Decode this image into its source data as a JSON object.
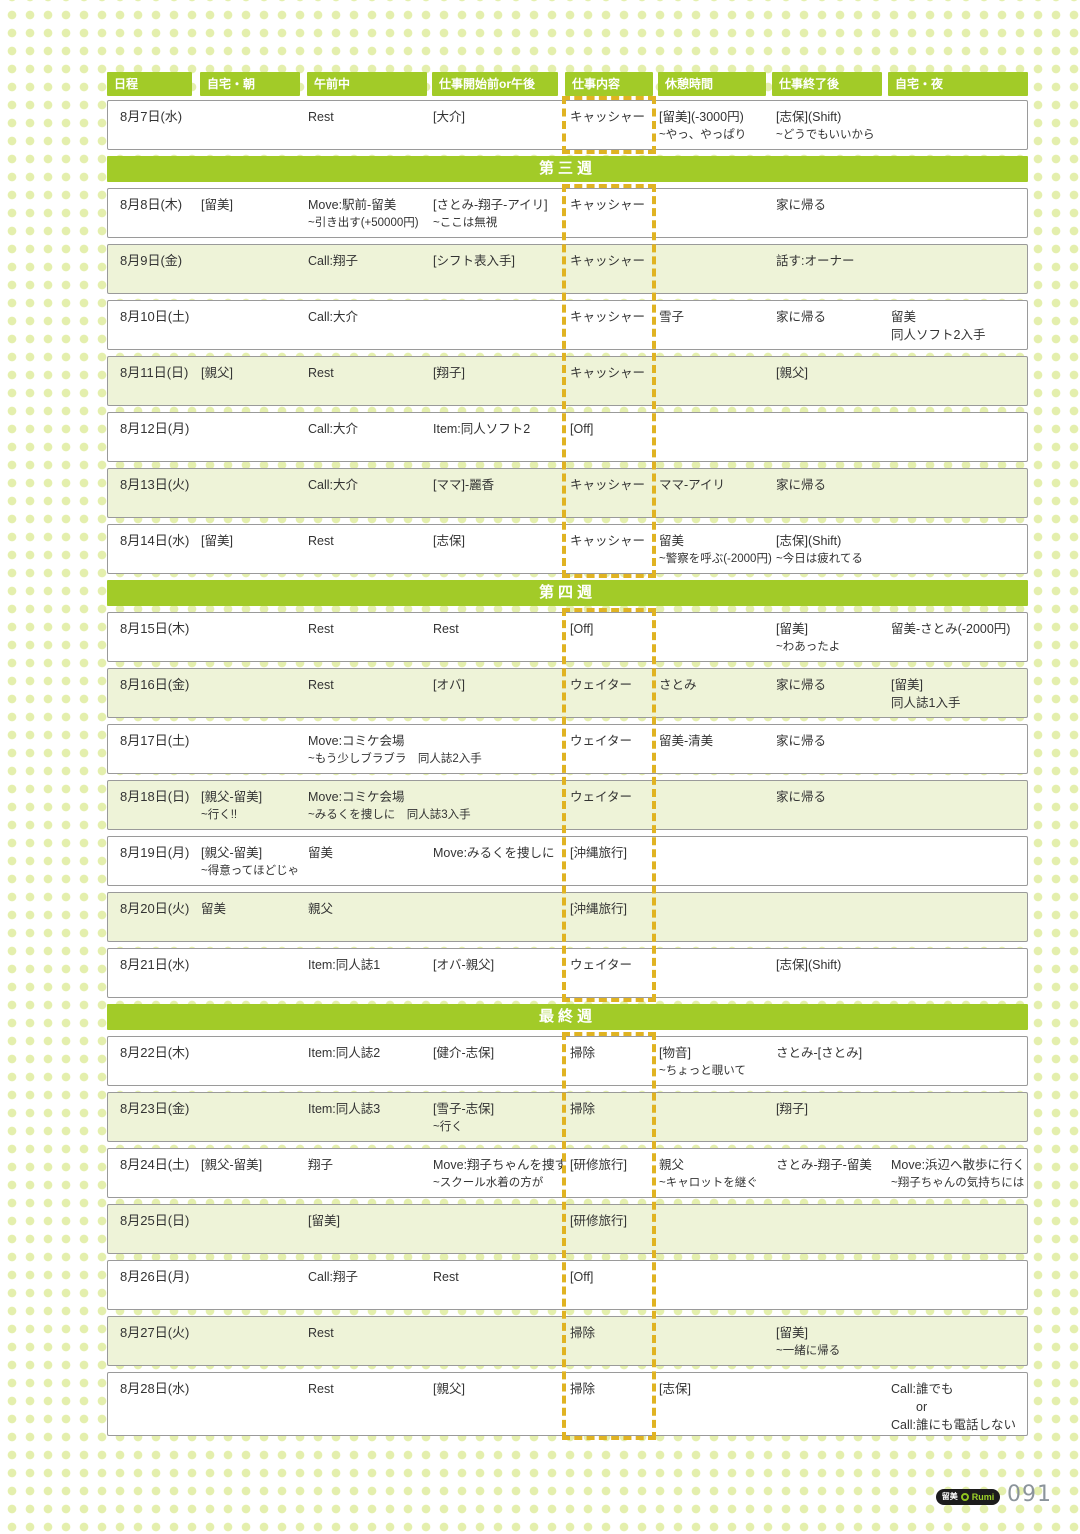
{
  "colors": {
    "header_green": "#a2cb28",
    "row_shaded": "#eef3d8",
    "row_border": "#9a9a9a",
    "dash_highlight": "#e0b322",
    "background_dot": "#e4efad",
    "text": "#333333",
    "page_number": "#8b949b"
  },
  "columns": [
    {
      "label": "日程"
    },
    {
      "label": "自宅・朝"
    },
    {
      "label": "午前中"
    },
    {
      "label": "仕事開始前or午後"
    },
    {
      "label": "仕事内容"
    },
    {
      "label": "休憩時間"
    },
    {
      "label": "仕事終了後"
    },
    {
      "label": "自宅・夜"
    }
  ],
  "highlight_column": "仕事内容",
  "sections": [
    {
      "kind": "block",
      "rows": [
        {
          "date": "8月7日(水)",
          "shaded": false,
          "cells": {
            "morning": [
              "Rest"
            ],
            "before_work": [
              "[大介]"
            ],
            "job": [
              "キャッシャー"
            ],
            "break_time": [
              "[留美](-3000円)",
              "~やっ、やっぱり"
            ],
            "after_work": [
              "[志保](Shift)",
              "~どうでもいいから"
            ]
          }
        }
      ]
    },
    {
      "kind": "week",
      "label": "第三週"
    },
    {
      "kind": "block",
      "rows": [
        {
          "date": "8月8日(木)",
          "shaded": false,
          "cells": {
            "home_morning": [
              "[留美]"
            ],
            "morning": [
              "Move:駅前-留美",
              "~引き出す(+50000円)"
            ],
            "before_work": [
              "[さとみ-翔子-アイリ]",
              "~ここは無視"
            ],
            "job": [
              "キャッシャー"
            ],
            "after_work": [
              "家に帰る"
            ]
          }
        },
        {
          "date": "8月9日(金)",
          "shaded": true,
          "cells": {
            "morning": [
              "Call:翔子"
            ],
            "before_work": [
              "[シフト表入手]"
            ],
            "job": [
              "キャッシャー"
            ],
            "after_work": [
              "話す:オーナー"
            ]
          }
        },
        {
          "date": "8月10日(土)",
          "shaded": false,
          "cells": {
            "morning": [
              "Call:大介"
            ],
            "job": [
              "キャッシャー"
            ],
            "break_time": [
              "雪子"
            ],
            "after_work": [
              "家に帰る"
            ],
            "home_night": [
              "留美",
              "同人ソフト2入手"
            ]
          }
        },
        {
          "date": "8月11日(日)",
          "shaded": true,
          "cells": {
            "home_morning": [
              "[親父]"
            ],
            "morning": [
              "Rest"
            ],
            "before_work": [
              "[翔子]"
            ],
            "job": [
              "キャッシャー"
            ],
            "after_work": [
              "[親父]"
            ]
          }
        },
        {
          "date": "8月12日(月)",
          "shaded": false,
          "cells": {
            "morning": [
              "Call:大介"
            ],
            "before_work": [
              "Item:同人ソフト2"
            ],
            "job": [
              "[Off]"
            ]
          }
        },
        {
          "date": "8月13日(火)",
          "shaded": true,
          "cells": {
            "morning": [
              "Call:大介"
            ],
            "before_work": [
              "[ママ]-麗香"
            ],
            "job": [
              "キャッシャー"
            ],
            "break_time": [
              "ママ-アイリ"
            ],
            "after_work": [
              "家に帰る"
            ]
          }
        },
        {
          "date": "8月14日(水)",
          "shaded": false,
          "cells": {
            "home_morning": [
              "[留美]"
            ],
            "morning": [
              "Rest"
            ],
            "before_work": [
              "[志保]"
            ],
            "job": [
              "キャッシャー"
            ],
            "break_time": [
              "留美",
              "~警察を呼ぶ(-2000円)"
            ],
            "after_work": [
              "[志保](Shift)",
              "~今日は疲れてる"
            ]
          }
        }
      ]
    },
    {
      "kind": "week",
      "label": "第四週"
    },
    {
      "kind": "block",
      "rows": [
        {
          "date": "8月15日(木)",
          "shaded": false,
          "cells": {
            "morning": [
              "Rest"
            ],
            "before_work": [
              "Rest"
            ],
            "job": [
              "[Off]"
            ],
            "after_work": [
              "[留美]",
              "~わあったよ"
            ],
            "home_night": [
              "留美-さとみ(-2000円)"
            ]
          }
        },
        {
          "date": "8月16日(金)",
          "shaded": true,
          "cells": {
            "morning": [
              "Rest"
            ],
            "before_work": [
              "[オバ]"
            ],
            "job": [
              "ウェイター"
            ],
            "break_time": [
              "さとみ"
            ],
            "after_work": [
              "家に帰る"
            ],
            "home_night": [
              "[留美]",
              "同人誌1入手"
            ]
          }
        },
        {
          "date": "8月17日(土)",
          "shaded": false,
          "cells": {
            "morning": [
              "Move:コミケ会場",
              "~もう少しブラブラ　同人誌2入手"
            ],
            "job": [
              "ウェイター"
            ],
            "break_time": [
              "留美-清美"
            ],
            "after_work": [
              "家に帰る"
            ]
          }
        },
        {
          "date": "8月18日(日)",
          "shaded": true,
          "cells": {
            "home_morning": [
              "[親父-留美]",
              "~行く!!"
            ],
            "morning": [
              "Move:コミケ会場",
              "~みるくを捜しに　同人誌3入手"
            ],
            "job": [
              "ウェイター"
            ],
            "after_work": [
              "家に帰る"
            ]
          }
        },
        {
          "date": "8月19日(月)",
          "shaded": false,
          "cells": {
            "home_morning": [
              "[親父-留美]",
              "~得意ってほどじゃ"
            ],
            "morning": [
              "留美"
            ],
            "before_work": [
              "Move:みるくを捜しに"
            ],
            "job": [
              "[沖縄旅行]"
            ]
          }
        },
        {
          "date": "8月20日(火)",
          "shaded": true,
          "cells": {
            "home_morning": [
              "留美"
            ],
            "morning": [
              "親父"
            ],
            "job": [
              "[沖縄旅行]"
            ]
          }
        },
        {
          "date": "8月21日(水)",
          "shaded": false,
          "cells": {
            "morning": [
              "Item:同人誌1"
            ],
            "before_work": [
              "[オバ-親父]"
            ],
            "job": [
              "ウェイター"
            ],
            "after_work": [
              "[志保](Shift)"
            ]
          }
        }
      ]
    },
    {
      "kind": "week",
      "label": "最終週"
    },
    {
      "kind": "block",
      "rows": [
        {
          "date": "8月22日(木)",
          "shaded": false,
          "cells": {
            "morning": [
              "Item:同人誌2"
            ],
            "before_work": [
              "[健介-志保]"
            ],
            "job": [
              "掃除"
            ],
            "break_time": [
              "[物音]",
              "~ちょっと覗いて"
            ],
            "after_work": [
              "さとみ-[さとみ]"
            ]
          }
        },
        {
          "date": "8月23日(金)",
          "shaded": true,
          "cells": {
            "morning": [
              "Item:同人誌3"
            ],
            "before_work": [
              "[雪子-志保]",
              "~行く"
            ],
            "job": [
              "掃除"
            ],
            "after_work": [
              "[翔子]"
            ]
          }
        },
        {
          "date": "8月24日(土)",
          "shaded": false,
          "cells": {
            "home_morning": [
              "[親父-留美]"
            ],
            "morning": [
              "翔子"
            ],
            "before_work": [
              "Move:翔子ちゃんを捜す",
              "~スクール水着の方が"
            ],
            "job": [
              "[研修旅行]"
            ],
            "break_time": [
              "親父",
              "~キャロットを継ぐ"
            ],
            "after_work": [
              "さとみ-翔子-留美"
            ],
            "home_night": [
              "Move:浜辺へ散歩に行く",
              "~翔子ちゃんの気持ちには"
            ]
          }
        },
        {
          "date": "8月25日(日)",
          "shaded": true,
          "cells": {
            "morning": [
              "[留美]"
            ],
            "job": [
              "[研修旅行]"
            ]
          }
        },
        {
          "date": "8月26日(月)",
          "shaded": false,
          "cells": {
            "morning": [
              "Call:翔子"
            ],
            "before_work": [
              "Rest"
            ],
            "job": [
              "[Off]"
            ]
          }
        },
        {
          "date": "8月27日(火)",
          "shaded": true,
          "cells": {
            "morning": [
              "Rest"
            ],
            "job": [
              "掃除"
            ],
            "after_work": [
              "[留美]",
              "~一緒に帰る"
            ]
          }
        },
        {
          "date": "8月28日(水)",
          "shaded": false,
          "height": 64,
          "cells": {
            "morning": [
              "Rest"
            ],
            "before_work": [
              "[親父]"
            ],
            "job": [
              "掃除"
            ],
            "break_time": [
              "[志保]"
            ],
            "home_night": [
              "Call:誰でも",
              "　　or",
              "Call:誰にも電話しない"
            ]
          }
        }
      ]
    }
  ],
  "footer": {
    "badge_name_jp": "留美",
    "badge_name_en": "Rumi",
    "page_number": "091"
  }
}
